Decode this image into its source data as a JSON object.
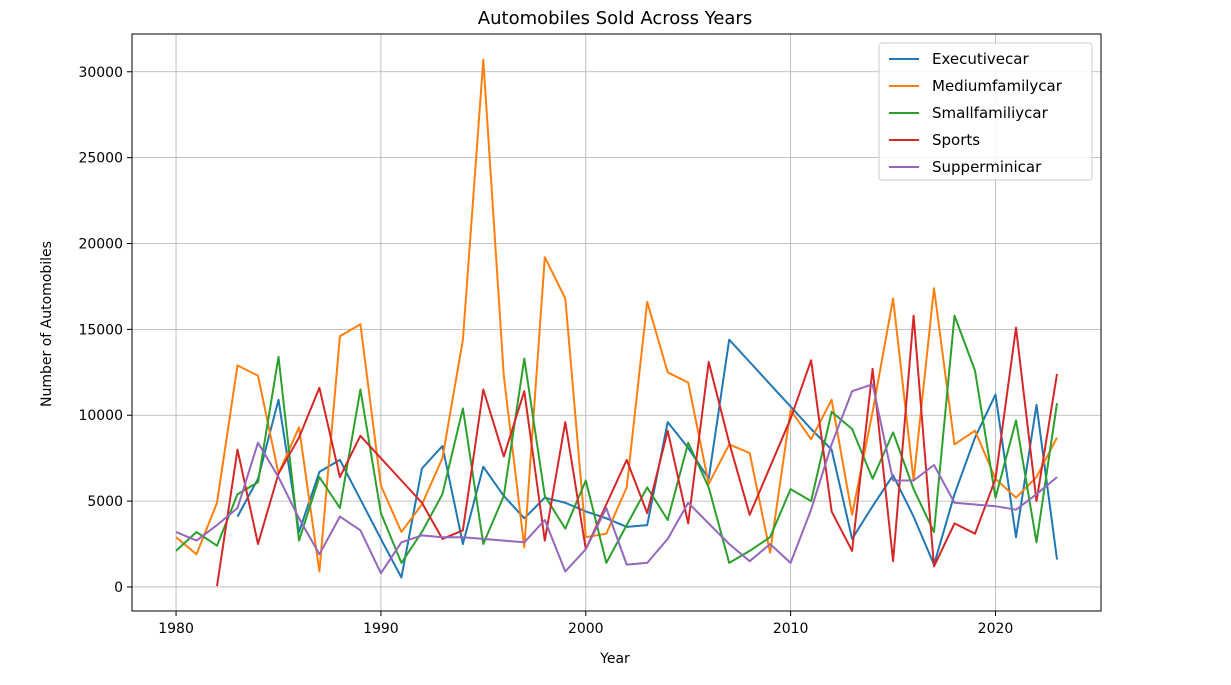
{
  "chart_data": {
    "type": "line",
    "title": "Automobiles Sold Across Years",
    "xlabel": "Year",
    "ylabel": "Number of Automobiles",
    "xlim": [
      1977.85,
      1025.15
    ],
    "ylim": [
      -1400,
      32200
    ],
    "xticks": [
      1980,
      1990,
      2000,
      2010,
      2020
    ],
    "yticks": [
      0,
      5000,
      10000,
      15000,
      20000,
      25000,
      30000
    ],
    "grid": true,
    "legend_position": "top-right",
    "series": [
      {
        "name": "Executivecar",
        "color": "#1f77b4",
        "x": [
          1983,
          1984,
          1985,
          1986,
          1987,
          1988,
          1989,
          1990,
          1991,
          1992,
          1993,
          1994,
          1995,
          1996,
          1997,
          1998,
          1999,
          2000,
          2001,
          2002,
          2003,
          2004,
          2005,
          2006,
          2007,
          2008,
          2009,
          2010,
          2011,
          2012,
          2013,
          2014,
          2015,
          2016,
          2017,
          2018,
          2019,
          2020,
          2021,
          2022,
          2023
        ],
        "y": [
          4100,
          6300,
          10900,
          3200,
          6700,
          7400,
          5100,
          2800,
          550,
          6900,
          8200,
          2500,
          7000,
          5300,
          4000,
          5200,
          4900,
          4400,
          4000,
          3500,
          3600,
          9600,
          8100,
          6300,
          14400,
          13100,
          11800,
          10500,
          9200,
          8000,
          2800,
          4700,
          6500,
          4100,
          1300,
          5400,
          8700,
          11200,
          2900,
          10600,
          1600
        ]
      },
      {
        "name": "Mediumfamilycar",
        "color": "#ff7f0e",
        "x": [
          1980,
          1981,
          1982,
          1983,
          1984,
          1985,
          1986,
          1987,
          1988,
          1989,
          1990,
          1991,
          1992,
          1993,
          1994,
          1995,
          1996,
          1997,
          1998,
          1999,
          2000,
          2001,
          2002,
          2003,
          2004,
          2005,
          2006,
          2007,
          2008,
          2009,
          2010,
          2011,
          2012,
          2013,
          2014,
          2015,
          2016,
          2017,
          2018,
          2019,
          2020,
          2021,
          2022,
          2023
        ],
        "y": [
          2900,
          1900,
          4900,
          12900,
          12300,
          6600,
          9300,
          900,
          14600,
          15300,
          5900,
          3200,
          4800,
          7500,
          14400,
          30700,
          12300,
          2300,
          19200,
          16800,
          2900,
          3100,
          5800,
          16600,
          12500,
          11900,
          6000,
          8300,
          7800,
          2000,
          10300,
          8600,
          10900,
          4200,
          10200,
          16800,
          6200,
          17400,
          8300,
          9100,
          6300,
          5200,
          6400,
          8700
        ]
      },
      {
        "name": "Smallfamiliycar",
        "color": "#2ca02c",
        "x": [
          1980,
          1981,
          1982,
          1983,
          1984,
          1985,
          1986,
          1987,
          1988,
          1989,
          1990,
          1991,
          1992,
          1993,
          1994,
          1995,
          1996,
          1997,
          1998,
          1999,
          2000,
          2001,
          2002,
          2003,
          2004,
          2005,
          2006,
          2007,
          2008,
          2009,
          2010,
          2011,
          2012,
          2013,
          2014,
          2015,
          2016,
          2017,
          2018,
          2019,
          2020,
          2021,
          2022,
          2023
        ],
        "y": [
          2100,
          3200,
          2400,
          5400,
          6100,
          13400,
          2700,
          6400,
          4600,
          11500,
          4300,
          1400,
          3200,
          5400,
          10400,
          2500,
          5300,
          13300,
          5300,
          3400,
          6200,
          1400,
          3600,
          5800,
          3900,
          8400,
          5800,
          1400,
          2100,
          2900,
          5700,
          5000,
          10200,
          9200,
          6300,
          9000,
          5700,
          3200,
          15800,
          12600,
          5200,
          9700,
          2600,
          10700
        ]
      },
      {
        "name": "Sports",
        "color": "#d62728",
        "x": [
          1982,
          1983,
          1984,
          1985,
          1986,
          1987,
          1988,
          1989,
          1990,
          1991,
          1992,
          1993,
          1994,
          1995,
          1996,
          1997,
          1998,
          1999,
          2000,
          2001,
          2002,
          2003,
          2004,
          2005,
          2006,
          2007,
          2008,
          2009,
          2010,
          2011,
          2012,
          2013,
          2014,
          2015,
          2016,
          2017,
          2018,
          2019,
          2020,
          2021,
          2022,
          2023
        ],
        "y": [
          50,
          8000,
          2500,
          6600,
          8700,
          11600,
          6400,
          8800,
          7500,
          6200,
          4900,
          2800,
          3300,
          11500,
          7600,
          11400,
          2700,
          9600,
          2200,
          4800,
          7400,
          4300,
          9100,
          3700,
          13100,
          8400,
          4200,
          7000,
          9800,
          13200,
          4400,
          2100,
          12700,
          1500,
          15800,
          1200,
          3700,
          3100,
          6300,
          15100,
          5000,
          12400
        ]
      },
      {
        "name": "Supperminicar",
        "color": "#9467bd",
        "x": [
          1980,
          1981,
          1982,
          1983,
          1984,
          1985,
          1986,
          1987,
          1988,
          1989,
          1990,
          1991,
          1992,
          1993,
          1994,
          1995,
          1996,
          1997,
          1998,
          1999,
          2000,
          2001,
          2002,
          2003,
          2004,
          2005,
          2006,
          2007,
          2008,
          2009,
          2010,
          2011,
          2012,
          2013,
          2014,
          2015,
          2016,
          2017,
          2018,
          2019,
          2020,
          2021,
          2022,
          2023
        ],
        "y": [
          3200,
          2700,
          3600,
          4600,
          8400,
          6400,
          4000,
          1900,
          4100,
          3300,
          800,
          2600,
          3000,
          2900,
          2900,
          2800,
          2700,
          2600,
          3900,
          900,
          2200,
          4600,
          1300,
          1400,
          2800,
          4900,
          3700,
          2500,
          1500,
          2500,
          1400,
          4500,
          8300,
          11400,
          11800,
          6200,
          6200,
          7100,
          4900,
          4800,
          4700,
          4500,
          5400,
          6400
        ]
      }
    ]
  }
}
